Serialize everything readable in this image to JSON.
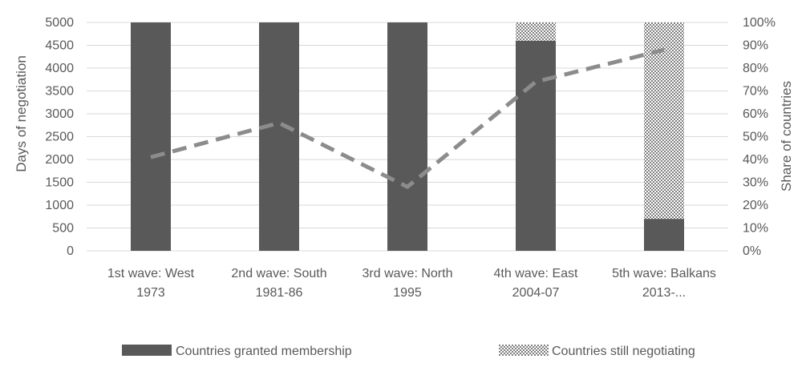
{
  "chart_data": {
    "type": "bar",
    "categories": [
      [
        "1st wave: West",
        "1973"
      ],
      [
        "2nd wave: South",
        "1981-86"
      ],
      [
        "3rd wave: North",
        "1995"
      ],
      [
        "4th wave: East",
        "2004-07"
      ],
      [
        "5th wave: Balkans",
        "2013-..."
      ]
    ],
    "series": [
      {
        "name": "Countries granted membership",
        "type": "stacked-bar",
        "axis": "right",
        "values": [
          1.0,
          1.0,
          1.0,
          0.92,
          0.14
        ],
        "color": "#595959"
      },
      {
        "name": "Countries still negotiating",
        "type": "stacked-bar",
        "axis": "right",
        "pattern": "crosshatch",
        "values": [
          0.0,
          0.0,
          0.0,
          0.08,
          0.86
        ],
        "color": "#bfbfbf"
      },
      {
        "axis": "left",
        "type": "dashed-line",
        "values": [
          2050,
          2800,
          1400,
          3700,
          4400
        ],
        "color": "#8c8c8c"
      }
    ],
    "ylabel": "Days of negotiation",
    "ylim": [
      0,
      5000
    ],
    "yticks": [
      "0",
      "500",
      "1000",
      "1500",
      "2000",
      "2500",
      "3000",
      "3500",
      "4000",
      "4500",
      "5000"
    ],
    "y2label": "Share of countries",
    "y2lim": [
      0,
      1
    ],
    "y2ticks": [
      "0%",
      "10%",
      "20%",
      "30%",
      "40%",
      "50%",
      "60%",
      "70%",
      "80%",
      "90%",
      "100%"
    ],
    "grid": true,
    "legend": "bottom",
    "legend_entries": [
      "Countries granted membership",
      "Countries still negotiating"
    ]
  }
}
